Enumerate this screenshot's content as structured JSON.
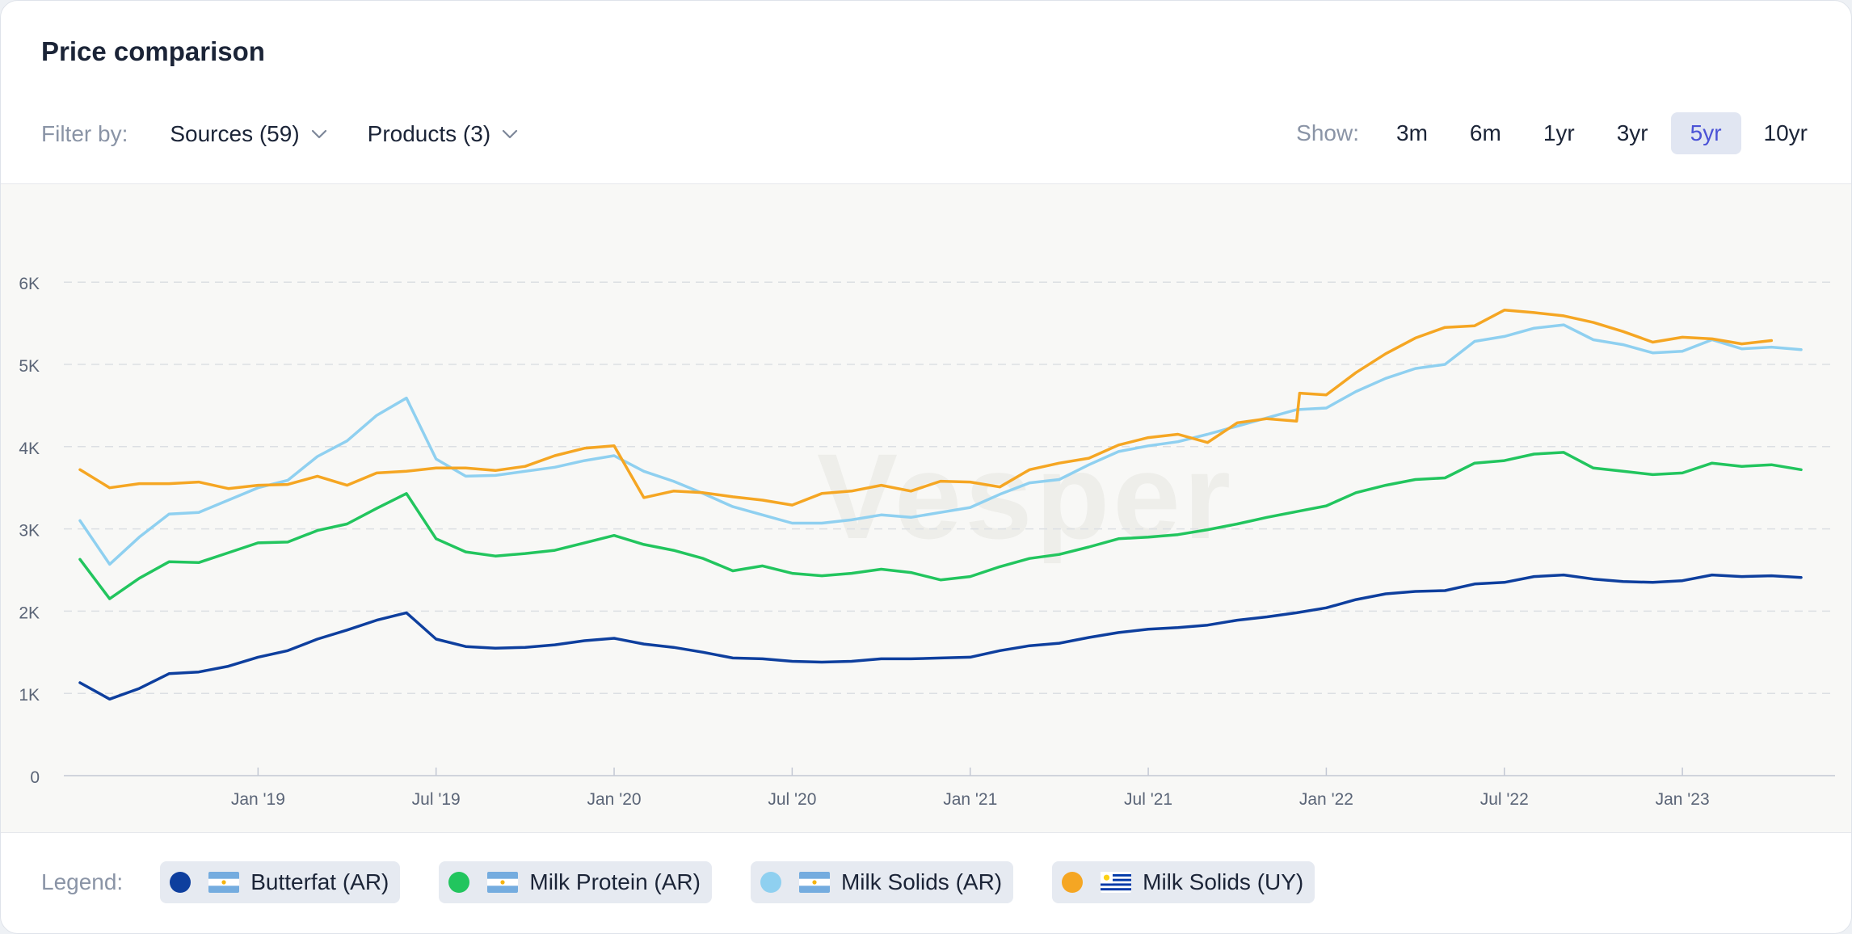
{
  "title": "Price comparison",
  "filters": {
    "label": "Filter by:",
    "sources": "Sources (59)",
    "products": "Products (3)"
  },
  "show": {
    "label": "Show:",
    "ranges": [
      "3m",
      "6m",
      "1yr",
      "3yr",
      "5yr",
      "10yr"
    ],
    "active": "5yr"
  },
  "legend": {
    "label": "Legend:",
    "items": [
      {
        "label": "Butterfat (AR)",
        "color": "#0e3f9e",
        "flag": "AR"
      },
      {
        "label": "Milk Protein (AR)",
        "color": "#22c55e",
        "flag": "AR"
      },
      {
        "label": "Milk Solids (AR)",
        "color": "#8fd0f0",
        "flag": "AR"
      },
      {
        "label": "Milk Solids (UY)",
        "color": "#f5a623",
        "flag": "UY"
      }
    ]
  },
  "watermark": "Vesper",
  "chart_data": {
    "type": "line",
    "y_ticks": [
      "0",
      "1K",
      "2K",
      "3K",
      "4K",
      "5K",
      "6K"
    ],
    "x_ticks": [
      "Jan '19",
      "Jul '19",
      "Jan '20",
      "Jul '20",
      "Jan '21",
      "Jul '21",
      "Jan '22",
      "Jul '22",
      "Jan '23"
    ],
    "x_tick_months": [
      6,
      12,
      18,
      24,
      30,
      36,
      42,
      48,
      54
    ],
    "ylim": [
      0,
      6500
    ],
    "x_range_months": [
      0,
      58
    ],
    "grid": "horizontal dashed",
    "legend_position": "bottom",
    "series": [
      {
        "name": "Butterfat (AR)",
        "color": "#0e3f9e",
        "points": [
          [
            0,
            1130
          ],
          [
            1,
            930
          ],
          [
            2,
            1060
          ],
          [
            3,
            1240
          ],
          [
            4,
            1260
          ],
          [
            5,
            1330
          ],
          [
            6,
            1440
          ],
          [
            7,
            1520
          ],
          [
            8,
            1660
          ],
          [
            9,
            1770
          ],
          [
            10,
            1890
          ],
          [
            11,
            1980
          ],
          [
            12,
            1660
          ],
          [
            13,
            1570
          ],
          [
            14,
            1550
          ],
          [
            15,
            1560
          ],
          [
            16,
            1590
          ],
          [
            17,
            1640
          ],
          [
            18,
            1670
          ],
          [
            19,
            1600
          ],
          [
            20,
            1560
          ],
          [
            21,
            1500
          ],
          [
            22,
            1430
          ],
          [
            23,
            1420
          ],
          [
            24,
            1390
          ],
          [
            25,
            1380
          ],
          [
            26,
            1390
          ],
          [
            27,
            1420
          ],
          [
            28,
            1420
          ],
          [
            29,
            1430
          ],
          [
            30,
            1440
          ],
          [
            31,
            1520
          ],
          [
            32,
            1580
          ],
          [
            33,
            1610
          ],
          [
            34,
            1680
          ],
          [
            35,
            1740
          ],
          [
            36,
            1780
          ],
          [
            37,
            1800
          ],
          [
            38,
            1830
          ],
          [
            39,
            1890
          ],
          [
            40,
            1930
          ],
          [
            41,
            1980
          ],
          [
            42,
            2040
          ],
          [
            43,
            2140
          ],
          [
            44,
            2210
          ],
          [
            45,
            2240
          ],
          [
            46,
            2250
          ],
          [
            47,
            2330
          ],
          [
            48,
            2350
          ],
          [
            49,
            2420
          ],
          [
            50,
            2440
          ],
          [
            51,
            2390
          ],
          [
            52,
            2360
          ],
          [
            53,
            2350
          ],
          [
            54,
            2370
          ],
          [
            55,
            2440
          ],
          [
            56,
            2420
          ],
          [
            57,
            2430
          ],
          [
            58,
            2410
          ]
        ]
      },
      {
        "name": "Milk Protein (AR)",
        "color": "#22c55e",
        "points": [
          [
            0,
            2630
          ],
          [
            1,
            2150
          ],
          [
            2,
            2400
          ],
          [
            3,
            2600
          ],
          [
            4,
            2590
          ],
          [
            5,
            2710
          ],
          [
            6,
            2830
          ],
          [
            7,
            2840
          ],
          [
            8,
            2980
          ],
          [
            9,
            3060
          ],
          [
            10,
            3250
          ],
          [
            11,
            3430
          ],
          [
            12,
            2880
          ],
          [
            13,
            2720
          ],
          [
            14,
            2670
          ],
          [
            15,
            2700
          ],
          [
            16,
            2740
          ],
          [
            17,
            2830
          ],
          [
            18,
            2920
          ],
          [
            19,
            2810
          ],
          [
            20,
            2740
          ],
          [
            21,
            2640
          ],
          [
            22,
            2490
          ],
          [
            23,
            2550
          ],
          [
            24,
            2460
          ],
          [
            25,
            2430
          ],
          [
            26,
            2460
          ],
          [
            27,
            2510
          ],
          [
            28,
            2470
          ],
          [
            29,
            2380
          ],
          [
            30,
            2420
          ],
          [
            31,
            2540
          ],
          [
            32,
            2640
          ],
          [
            33,
            2690
          ],
          [
            34,
            2780
          ],
          [
            35,
            2880
          ],
          [
            36,
            2900
          ],
          [
            37,
            2930
          ],
          [
            38,
            2990
          ],
          [
            39,
            3060
          ],
          [
            40,
            3140
          ],
          [
            41,
            3210
          ],
          [
            42,
            3280
          ],
          [
            43,
            3440
          ],
          [
            44,
            3530
          ],
          [
            45,
            3600
          ],
          [
            46,
            3620
          ],
          [
            47,
            3800
          ],
          [
            48,
            3830
          ],
          [
            49,
            3910
          ],
          [
            50,
            3930
          ],
          [
            51,
            3740
          ],
          [
            52,
            3700
          ],
          [
            53,
            3660
          ],
          [
            54,
            3680
          ],
          [
            55,
            3800
          ],
          [
            56,
            3760
          ],
          [
            57,
            3780
          ],
          [
            58,
            3720
          ]
        ]
      },
      {
        "name": "Milk Solids (AR)",
        "color": "#8fd0f0",
        "points": [
          [
            0,
            3100
          ],
          [
            1,
            2570
          ],
          [
            2,
            2900
          ],
          [
            3,
            3180
          ],
          [
            4,
            3200
          ],
          [
            5,
            3350
          ],
          [
            6,
            3500
          ],
          [
            7,
            3590
          ],
          [
            8,
            3880
          ],
          [
            9,
            4070
          ],
          [
            10,
            4380
          ],
          [
            11,
            4590
          ],
          [
            12,
            3850
          ],
          [
            13,
            3640
          ],
          [
            14,
            3650
          ],
          [
            15,
            3700
          ],
          [
            16,
            3750
          ],
          [
            17,
            3830
          ],
          [
            18,
            3890
          ],
          [
            19,
            3700
          ],
          [
            20,
            3580
          ],
          [
            21,
            3430
          ],
          [
            22,
            3270
          ],
          [
            23,
            3170
          ],
          [
            24,
            3070
          ],
          [
            25,
            3070
          ],
          [
            26,
            3110
          ],
          [
            27,
            3170
          ],
          [
            28,
            3140
          ],
          [
            29,
            3200
          ],
          [
            30,
            3260
          ],
          [
            31,
            3420
          ],
          [
            32,
            3560
          ],
          [
            33,
            3600
          ],
          [
            34,
            3780
          ],
          [
            35,
            3940
          ],
          [
            36,
            4010
          ],
          [
            37,
            4060
          ],
          [
            38,
            4150
          ],
          [
            39,
            4250
          ],
          [
            40,
            4350
          ],
          [
            41,
            4450
          ],
          [
            42,
            4470
          ],
          [
            43,
            4670
          ],
          [
            44,
            4830
          ],
          [
            45,
            4950
          ],
          [
            46,
            5000
          ],
          [
            47,
            5280
          ],
          [
            48,
            5340
          ],
          [
            49,
            5440
          ],
          [
            50,
            5480
          ],
          [
            51,
            5300
          ],
          [
            52,
            5240
          ],
          [
            53,
            5140
          ],
          [
            54,
            5160
          ],
          [
            55,
            5300
          ],
          [
            56,
            5190
          ],
          [
            57,
            5210
          ],
          [
            58,
            5180
          ]
        ]
      },
      {
        "name": "Milk Solids (UY)",
        "color": "#f5a623",
        "points": [
          [
            0,
            3720
          ],
          [
            1,
            3500
          ],
          [
            2,
            3550
          ],
          [
            3,
            3550
          ],
          [
            4,
            3570
          ],
          [
            5,
            3490
          ],
          [
            6,
            3530
          ],
          [
            7,
            3540
          ],
          [
            8,
            3640
          ],
          [
            9,
            3530
          ],
          [
            10,
            3680
          ],
          [
            11,
            3700
          ],
          [
            12,
            3740
          ],
          [
            13,
            3740
          ],
          [
            14,
            3710
          ],
          [
            15,
            3760
          ],
          [
            16,
            3890
          ],
          [
            17,
            3980
          ],
          [
            18,
            4010
          ],
          [
            19,
            3380
          ],
          [
            20,
            3460
          ],
          [
            21,
            3440
          ],
          [
            22,
            3390
          ],
          [
            23,
            3350
          ],
          [
            24,
            3290
          ],
          [
            25,
            3430
          ],
          [
            26,
            3460
          ],
          [
            27,
            3530
          ],
          [
            28,
            3460
          ],
          [
            29,
            3580
          ],
          [
            30,
            3570
          ],
          [
            31,
            3510
          ],
          [
            32,
            3720
          ],
          [
            33,
            3800
          ],
          [
            34,
            3860
          ],
          [
            35,
            4020
          ],
          [
            36,
            4110
          ],
          [
            37,
            4150
          ],
          [
            38,
            4050
          ],
          [
            39,
            4290
          ],
          [
            40,
            4340
          ],
          [
            41,
            4310
          ],
          [
            41.1,
            4650
          ],
          [
            42,
            4630
          ],
          [
            43,
            4900
          ],
          [
            44,
            5130
          ],
          [
            45,
            5320
          ],
          [
            46,
            5450
          ],
          [
            47,
            5470
          ],
          [
            48,
            5660
          ],
          [
            49,
            5630
          ],
          [
            50,
            5590
          ],
          [
            51,
            5510
          ],
          [
            52,
            5400
          ],
          [
            53,
            5270
          ],
          [
            54,
            5330
          ],
          [
            55,
            5310
          ],
          [
            56,
            5250
          ],
          [
            57,
            5290
          ]
        ]
      }
    ]
  }
}
